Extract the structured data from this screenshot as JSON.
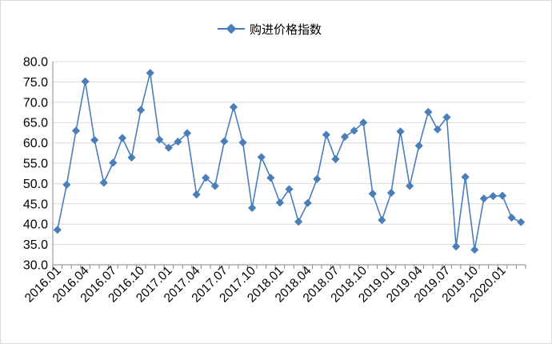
{
  "chart_data": {
    "type": "line",
    "title": "",
    "xlabel": "",
    "ylabel": "",
    "legend_position": "top",
    "ylim": [
      30,
      80
    ],
    "y_ticks": [
      "30.0",
      "35.0",
      "40.0",
      "45.0",
      "50.0",
      "55.0",
      "60.0",
      "65.0",
      "70.0",
      "75.0",
      "80.0"
    ],
    "x_tick_labels": [
      "2016.01",
      "2016.04",
      "2016.07",
      "2016.10",
      "2017.01",
      "2017.04",
      "2017.07",
      "2017.10",
      "2018.01",
      "2018.04",
      "2018.07",
      "2018.10",
      "2019.01",
      "2019.04",
      "2019.07",
      "2019.10",
      "2020.01"
    ],
    "grid": "horizontal",
    "series_color": "#4a7ebb",
    "series": [
      {
        "name": "购进价格指数",
        "x": [
          "2016.01",
          "2016.02",
          "2016.03",
          "2016.04",
          "2016.05",
          "2016.06",
          "2016.07",
          "2016.08",
          "2016.09",
          "2016.10",
          "2016.11",
          "2016.12",
          "2017.01",
          "2017.02",
          "2017.03",
          "2017.04",
          "2017.05",
          "2017.06",
          "2017.07",
          "2017.08",
          "2017.09",
          "2017.10",
          "2017.11",
          "2017.12",
          "2018.01",
          "2018.02",
          "2018.03",
          "2018.04",
          "2018.05",
          "2018.06",
          "2018.07",
          "2018.08",
          "2018.09",
          "2018.10",
          "2018.11",
          "2018.12",
          "2019.01",
          "2019.02",
          "2019.03",
          "2019.04",
          "2019.05",
          "2019.06",
          "2019.07",
          "2019.08",
          "2019.09",
          "2019.10",
          "2019.11",
          "2019.12",
          "2020.01",
          "2020.02",
          "2020.03"
        ],
        "values": [
          38.6,
          49.7,
          63.0,
          75.1,
          60.7,
          50.2,
          55.1,
          61.2,
          56.4,
          68.1,
          77.2,
          60.8,
          58.8,
          60.3,
          62.4,
          47.3,
          51.4,
          49.4,
          60.4,
          68.8,
          60.1,
          44.0,
          56.5,
          51.4,
          45.3,
          48.6,
          40.6,
          45.2,
          51.1,
          62.0,
          56.0,
          61.5,
          63.0,
          65.0,
          47.5,
          41.0,
          47.7,
          62.8,
          49.4,
          59.3,
          67.6,
          63.3,
          66.3,
          34.5,
          51.6,
          33.7,
          46.3,
          46.9,
          47.0,
          41.6,
          40.5
        ]
      }
    ]
  }
}
